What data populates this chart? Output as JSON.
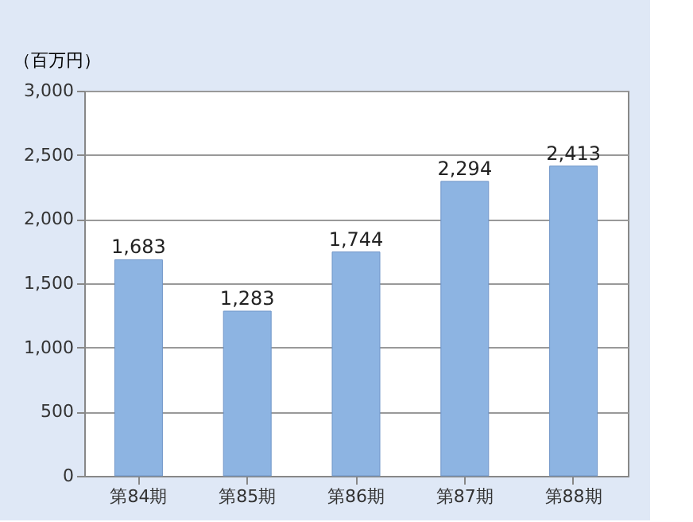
{
  "chart_data": {
    "type": "bar",
    "ylabel": "（百万円）",
    "categories": [
      "第84期",
      "第85期",
      "第86期",
      "第87期",
      "第88期"
    ],
    "values": [
      1683,
      1283,
      1744,
      2294,
      2413
    ],
    "value_labels": [
      "1,683",
      "1,283",
      "1,744",
      "2,294",
      "2,413"
    ],
    "color": "#8db4e2",
    "ylim": [
      0,
      3000
    ],
    "yticks": [
      {
        "value": 0,
        "label": "0"
      },
      {
        "value": 500,
        "label": "500"
      },
      {
        "value": 1000,
        "label": "1,000"
      },
      {
        "value": 1500,
        "label": "1,500"
      },
      {
        "value": 2000,
        "label": "2,000"
      },
      {
        "value": 2500,
        "label": "2,500"
      },
      {
        "value": 3000,
        "label": "3,000"
      }
    ],
    "grid": "y"
  }
}
